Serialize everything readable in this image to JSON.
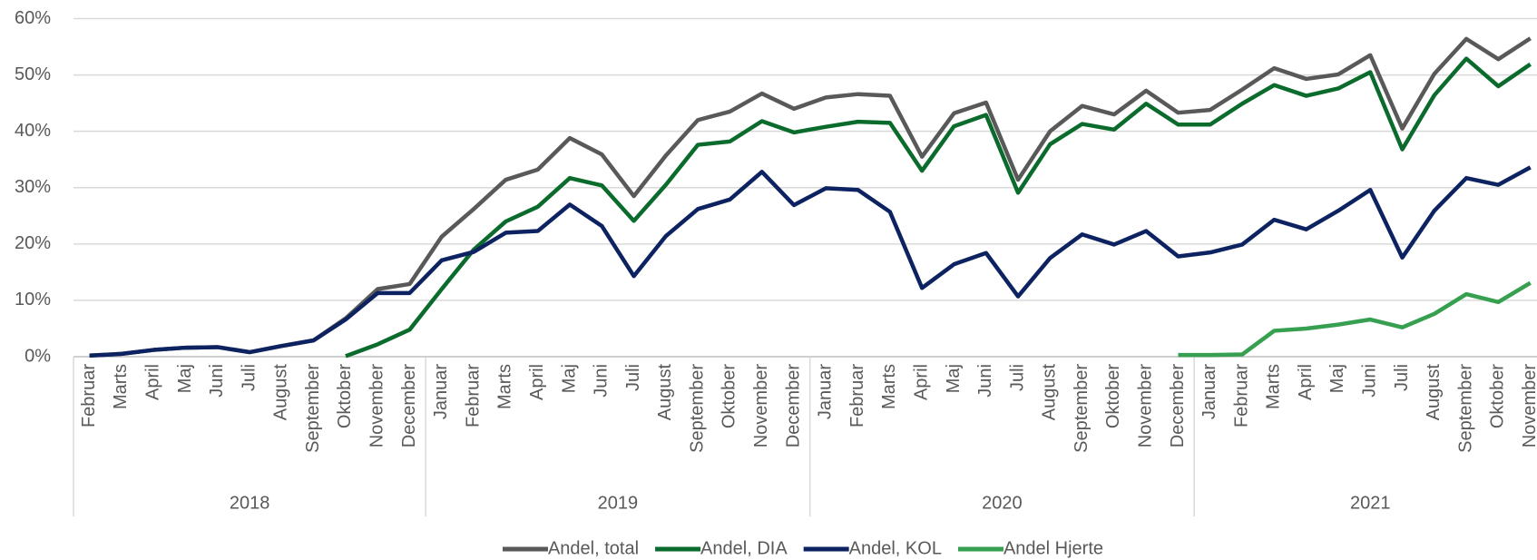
{
  "chart_data": {
    "type": "line",
    "groups": [
      {
        "label": "2018",
        "categories": [
          "Februar",
          "Marts",
          "April",
          "Maj",
          "Juni",
          "Juli",
          "August",
          "September",
          "Oktober",
          "November",
          "December"
        ]
      },
      {
        "label": "2019",
        "categories": [
          "Januar",
          "Februar",
          "Marts",
          "April",
          "Maj",
          "Juni",
          "Juli",
          "August",
          "September",
          "Oktober",
          "November",
          "December"
        ]
      },
      {
        "label": "2020",
        "categories": [
          "Januar",
          "Februar",
          "Marts",
          "April",
          "Maj",
          "Juni",
          "Juli",
          "August",
          "September",
          "Oktober",
          "November",
          "December"
        ]
      },
      {
        "label": "2021",
        "categories": [
          "Januar",
          "Februar",
          "Marts",
          "April",
          "Maj",
          "Juni",
          "Juli",
          "August",
          "September",
          "Oktober",
          "November"
        ]
      }
    ],
    "series": [
      {
        "name": "Andel, total",
        "color": "#595959",
        "values": [
          0.2,
          0.5,
          1.2,
          1.6,
          1.7,
          0.8,
          1.9,
          2.9,
          6.8,
          12.0,
          12.9,
          21.3,
          26.2,
          31.4,
          33.2,
          38.8,
          35.9,
          28.5,
          35.7,
          42.0,
          43.5,
          46.7,
          44.0,
          46.0,
          46.6,
          46.3,
          35.5,
          43.2,
          45.1,
          31.4,
          40.0,
          44.5,
          43.0,
          47.2,
          43.3,
          43.8,
          47.4,
          51.2,
          49.3,
          50.1,
          53.5,
          40.5,
          50.2,
          56.4,
          52.8,
          56.5
        ]
      },
      {
        "name": "Andel, DIA",
        "color": "#0b6b2c",
        "values": [
          null,
          null,
          null,
          null,
          null,
          null,
          null,
          null,
          0.1,
          2.2,
          4.8,
          12.0,
          19.0,
          24.0,
          26.6,
          31.7,
          30.4,
          24.1,
          30.5,
          37.6,
          38.2,
          41.8,
          39.8,
          40.8,
          41.7,
          41.5,
          33.0,
          40.9,
          42.9,
          29.1,
          37.7,
          41.3,
          40.3,
          44.9,
          41.2,
          41.2,
          44.9,
          48.2,
          46.3,
          47.6,
          50.5,
          36.8,
          46.4,
          52.9,
          48.0,
          51.9
        ]
      },
      {
        "name": "Andel, KOL",
        "color": "#0d2361",
        "values": [
          0.2,
          0.5,
          1.2,
          1.6,
          1.7,
          0.8,
          1.9,
          2.9,
          6.6,
          11.3,
          11.3,
          17.1,
          18.6,
          22.0,
          22.3,
          27.0,
          23.2,
          14.3,
          21.4,
          26.2,
          27.9,
          32.8,
          26.9,
          29.9,
          29.6,
          25.7,
          12.2,
          16.4,
          18.4,
          10.7,
          17.5,
          21.7,
          19.9,
          22.3,
          17.8,
          18.5,
          19.9,
          24.3,
          22.6,
          25.9,
          29.6,
          17.6,
          25.9,
          31.7,
          30.5,
          33.6
        ]
      },
      {
        "name": "Andel Hjerte",
        "color": "#36a050",
        "values": [
          null,
          null,
          null,
          null,
          null,
          null,
          null,
          null,
          null,
          null,
          null,
          null,
          null,
          null,
          null,
          null,
          null,
          null,
          null,
          null,
          null,
          null,
          null,
          null,
          null,
          null,
          null,
          null,
          null,
          null,
          null,
          null,
          null,
          null,
          0.3,
          0.3,
          0.4,
          4.6,
          5.0,
          5.7,
          6.6,
          5.2,
          7.6,
          11.1,
          9.7,
          13.1
        ]
      }
    ],
    "ylim": [
      0,
      60
    ],
    "yticks": [
      {
        "value": 0,
        "label": "0%"
      },
      {
        "value": 10,
        "label": "10%"
      },
      {
        "value": 20,
        "label": "20%"
      },
      {
        "value": 30,
        "label": "30%"
      },
      {
        "value": 40,
        "label": "40%"
      },
      {
        "value": 50,
        "label": "50%"
      },
      {
        "value": 60,
        "label": "60%"
      }
    ],
    "grid": true,
    "legend": "bottom"
  }
}
